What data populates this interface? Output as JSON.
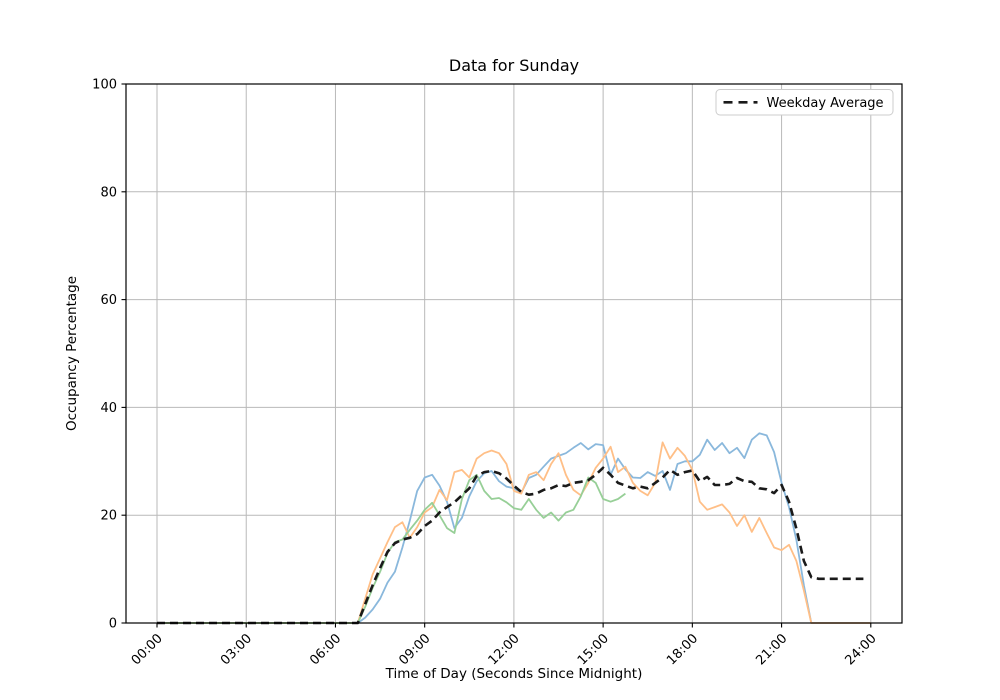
{
  "figure": {
    "title": "Data for Sunday",
    "xlabel": "Time of Day (Seconds Since Midnight)",
    "ylabel": "Occupancy Percentage",
    "legend": {
      "position": "upper right",
      "entries": [
        {
          "label": "Weekday Average",
          "line_style": "dashed",
          "color": "#1a1a1a"
        }
      ]
    }
  },
  "chart_data": {
    "type": "line",
    "title": "Data for Sunday",
    "xlabel": "Time of Day (Seconds Since Midnight)",
    "ylabel": "Occupancy Percentage",
    "grid": true,
    "legend_position": "upper right",
    "ylim": [
      0,
      100
    ],
    "xlim_hours": [
      -1.05,
      25.05
    ],
    "y_ticks": [
      0,
      20,
      40,
      60,
      80,
      100
    ],
    "x_tick_hours": [
      0,
      3,
      6,
      9,
      12,
      15,
      18,
      21,
      24
    ],
    "x_tick_labels": [
      "00:00",
      "03:00",
      "06:00",
      "09:00",
      "12:00",
      "15:00",
      "18:00",
      "21:00",
      "24:00"
    ],
    "x_start": "00:00",
    "x_interval_minutes": 15,
    "series": [
      {
        "label": null,
        "color": "#8ab8dc",
        "line_style": "solid",
        "line_width": 1.8,
        "values": [
          0,
          0,
          0,
          0,
          0,
          0,
          0,
          0,
          0,
          0,
          0,
          0,
          0,
          0,
          0,
          0,
          0,
          0,
          0,
          0,
          0,
          0,
          0,
          0,
          0,
          0,
          0,
          0,
          1,
          2.5,
          4.5,
          7.5,
          9.5,
          14,
          19,
          24.5,
          27,
          27.5,
          25.5,
          22.5,
          17.6,
          19.5,
          23.5,
          26.3,
          27.8,
          28.2,
          26.3,
          25.3,
          25,
          24.2,
          26.9,
          27.5,
          29,
          30.5,
          31,
          31.5,
          32.5,
          33.4,
          32.2,
          33.2,
          33,
          27.5,
          30.5,
          28.5,
          27,
          26.9,
          28,
          27.3,
          28.2,
          24.7,
          29.5,
          30,
          30,
          31.2,
          34,
          32.1,
          33.4,
          31.5,
          32.5,
          30.6,
          34,
          35.2,
          34.8,
          31.7,
          26,
          21.5,
          15.4,
          7,
          0,
          0,
          0,
          0,
          0,
          0,
          0,
          0,
          0
        ]
      },
      {
        "label": null,
        "color": "#ffbf87",
        "line_style": "solid",
        "line_width": 1.8,
        "values": [
          0,
          0,
          0,
          0,
          0,
          0,
          0,
          0,
          0,
          0,
          0,
          0,
          0,
          0,
          0,
          0,
          0,
          0,
          0,
          0,
          0,
          0,
          0,
          0,
          0,
          0,
          0,
          0,
          4.5,
          9,
          12,
          15,
          17.8,
          18.7,
          15.8,
          17.8,
          20.5,
          21.5,
          24.7,
          22.8,
          28,
          28.4,
          27,
          30.5,
          31.5,
          32,
          31.5,
          29.5,
          24.5,
          24,
          27.5,
          28,
          26.5,
          29.5,
          31.5,
          27.5,
          24.7,
          23.7,
          26,
          28.8,
          30.5,
          32.7,
          28,
          29,
          26,
          24.5,
          23.7,
          26,
          33.5,
          30.5,
          32.5,
          31,
          28.4,
          22.5,
          21,
          21.5,
          22,
          20.5,
          18,
          20,
          16.9,
          19.5,
          16.7,
          14,
          13.5,
          14.5,
          11.5,
          6,
          0,
          0,
          0,
          0,
          0,
          0,
          0,
          0,
          0
        ]
      },
      {
        "label": null,
        "color": "#97cf97",
        "line_style": "solid",
        "line_width": 1.8,
        "values": [
          0,
          0,
          0,
          0,
          0,
          0,
          0,
          0,
          0,
          0,
          0,
          0,
          0,
          0,
          0,
          0,
          0,
          0,
          0,
          0,
          0,
          0,
          0,
          0,
          0,
          0,
          0,
          0,
          3,
          6.5,
          9.5,
          13,
          15,
          15.5,
          17.3,
          19,
          21,
          22.3,
          20,
          17.6,
          16.7,
          23,
          26.5,
          27.5,
          24.5,
          23,
          23.2,
          22.4,
          21.3,
          21,
          23,
          21,
          19.5,
          20.5,
          19,
          20.5,
          21,
          23.5,
          27,
          26,
          23,
          22.5,
          23,
          24,
          null,
          null,
          null,
          null,
          null,
          null,
          null,
          null,
          null,
          null,
          null,
          null,
          null,
          null,
          null,
          null,
          null,
          null,
          null,
          null,
          null,
          null,
          null,
          null,
          null,
          null,
          null,
          null,
          null,
          null,
          null,
          null,
          null
        ]
      },
      {
        "label": "Weekday Average",
        "color": "#1a1a1a",
        "line_style": "dashed",
        "line_width": 2.6,
        "values": [
          0,
          0,
          0,
          0,
          0,
          0,
          0,
          0,
          0,
          0,
          0,
          0,
          0,
          0,
          0,
          0,
          0,
          0,
          0,
          0,
          0,
          0,
          0,
          0,
          0,
          0,
          0,
          0,
          3.5,
          7,
          10.2,
          13.2,
          14.8,
          15.5,
          15.8,
          16.5,
          18,
          19,
          20.5,
          21.5,
          22.4,
          23.7,
          25,
          27.3,
          28,
          28.2,
          27.8,
          26.8,
          25.5,
          24.3,
          23.8,
          24,
          24.7,
          25,
          25.6,
          25.4,
          26,
          26.2,
          26.5,
          27.5,
          28.8,
          27.5,
          26,
          25.5,
          25,
          25.3,
          25,
          26,
          27,
          28.4,
          27.5,
          28,
          28.3,
          26.3,
          27.1,
          25.6,
          25.6,
          25.8,
          26.9,
          26.3,
          26.2,
          25,
          24.8,
          24.1,
          25.6,
          22.5,
          17.5,
          11.5,
          8.5,
          8.2,
          8.2,
          8.2,
          8.2,
          8.2,
          8.2,
          8.2,
          null
        ]
      }
    ]
  }
}
